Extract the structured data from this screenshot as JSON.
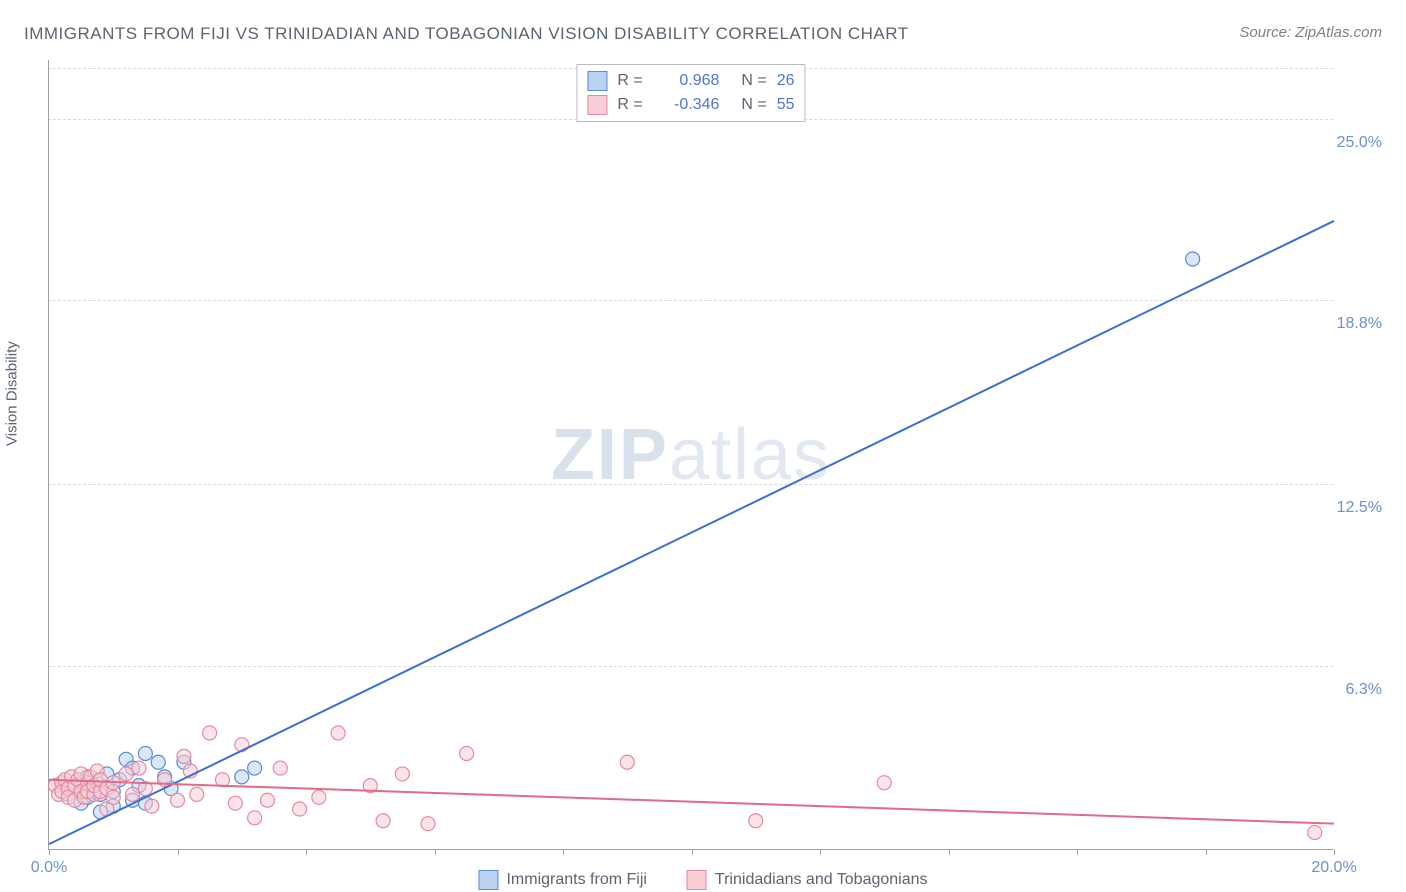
{
  "title": "IMMIGRANTS FROM FIJI VS TRINIDADIAN AND TOBAGONIAN VISION DISABILITY CORRELATION CHART",
  "source_label": "Source:",
  "source_value": "ZipAtlas.com",
  "y_axis_label": "Vision Disability",
  "watermark_bold": "ZIP",
  "watermark_light": "atlas",
  "chart": {
    "type": "scatter",
    "background_color": "#ffffff",
    "grid_color": "#d8dce0",
    "axis_color": "#9aa0a6",
    "xlim": [
      0,
      20
    ],
    "ylim": [
      0,
      27
    ],
    "x_ticks": [
      0,
      2,
      4,
      6,
      8,
      10,
      12,
      14,
      16,
      18,
      20
    ],
    "x_tick_labels_shown": {
      "0": "0.0%",
      "20": "20.0%"
    },
    "y_ticks": [
      6.3,
      12.5,
      18.8,
      25.0
    ],
    "y_tick_labels": [
      "6.3%",
      "12.5%",
      "18.8%",
      "25.0%"
    ],
    "tick_label_color": "#6b8fd4",
    "tick_label_fontsize": 16,
    "marker_radius": 7,
    "marker_stroke_width": 1.2,
    "line_width": 2,
    "series": [
      {
        "name": "Immigrants from Fiji",
        "key": "fiji",
        "fill": "#bcd3f0",
        "stroke": "#5a8bd6",
        "line_color": "#3b6fd6",
        "R": "0.968",
        "N": "26",
        "regression": {
          "x0": 0,
          "y0": 0.2,
          "x1": 20,
          "y1": 21.5
        },
        "points": [
          [
            0.3,
            1.9
          ],
          [
            0.4,
            2.1
          ],
          [
            0.5,
            1.6
          ],
          [
            0.5,
            2.3
          ],
          [
            0.6,
            1.8
          ],
          [
            0.6,
            2.5
          ],
          [
            0.7,
            2.0
          ],
          [
            0.8,
            1.9
          ],
          [
            0.8,
            1.3
          ],
          [
            0.9,
            2.6
          ],
          [
            1.0,
            2.0
          ],
          [
            1.0,
            1.5
          ],
          [
            1.1,
            2.4
          ],
          [
            1.2,
            3.1
          ],
          [
            1.3,
            1.7
          ],
          [
            1.3,
            2.8
          ],
          [
            1.4,
            2.2
          ],
          [
            1.5,
            1.6
          ],
          [
            1.5,
            3.3
          ],
          [
            1.7,
            3.0
          ],
          [
            1.8,
            2.5
          ],
          [
            1.9,
            2.1
          ],
          [
            2.1,
            3.0
          ],
          [
            3.0,
            2.5
          ],
          [
            3.2,
            2.8
          ],
          [
            17.8,
            20.2
          ]
        ]
      },
      {
        "name": "Trinidadians and Tobagonians",
        "key": "trinidad",
        "fill": "#f7cdd6",
        "stroke": "#e58aa0",
        "line_color": "#e06a87",
        "R": "-0.346",
        "N": "55",
        "regression": {
          "x0": 0,
          "y0": 2.4,
          "x1": 20,
          "y1": 0.9
        },
        "points": [
          [
            0.1,
            2.2
          ],
          [
            0.15,
            1.9
          ],
          [
            0.2,
            2.3
          ],
          [
            0.2,
            2.0
          ],
          [
            0.25,
            2.4
          ],
          [
            0.3,
            2.1
          ],
          [
            0.3,
            1.8
          ],
          [
            0.35,
            2.5
          ],
          [
            0.4,
            2.2
          ],
          [
            0.4,
            1.7
          ],
          [
            0.45,
            2.4
          ],
          [
            0.5,
            2.0
          ],
          [
            0.5,
            2.6
          ],
          [
            0.55,
            1.8
          ],
          [
            0.6,
            2.3
          ],
          [
            0.6,
            2.0
          ],
          [
            0.65,
            2.5
          ],
          [
            0.7,
            1.9
          ],
          [
            0.7,
            2.2
          ],
          [
            0.75,
            2.7
          ],
          [
            0.8,
            2.0
          ],
          [
            0.8,
            2.4
          ],
          [
            0.9,
            1.4
          ],
          [
            0.9,
            2.1
          ],
          [
            1.0,
            2.3
          ],
          [
            1.0,
            1.8
          ],
          [
            1.2,
            2.6
          ],
          [
            1.3,
            1.9
          ],
          [
            1.4,
            2.8
          ],
          [
            1.5,
            2.1
          ],
          [
            1.6,
            1.5
          ],
          [
            1.8,
            2.4
          ],
          [
            2.0,
            1.7
          ],
          [
            2.1,
            3.2
          ],
          [
            2.2,
            2.7
          ],
          [
            2.3,
            1.9
          ],
          [
            2.5,
            4.0
          ],
          [
            2.7,
            2.4
          ],
          [
            2.9,
            1.6
          ],
          [
            3.0,
            3.6
          ],
          [
            3.2,
            1.1
          ],
          [
            3.4,
            1.7
          ],
          [
            3.6,
            2.8
          ],
          [
            3.9,
            1.4
          ],
          [
            4.2,
            1.8
          ],
          [
            4.5,
            4.0
          ],
          [
            5.0,
            2.2
          ],
          [
            5.2,
            1.0
          ],
          [
            5.5,
            2.6
          ],
          [
            5.9,
            0.9
          ],
          [
            6.5,
            3.3
          ],
          [
            9.0,
            3.0
          ],
          [
            11.0,
            1.0
          ],
          [
            13.0,
            2.3
          ],
          [
            19.7,
            0.6
          ]
        ]
      }
    ]
  },
  "legend_bottom": [
    {
      "key": "fiji",
      "label": "Immigrants from Fiji"
    },
    {
      "key": "trinidad",
      "label": "Trinidadians and Tobagonians"
    }
  ]
}
